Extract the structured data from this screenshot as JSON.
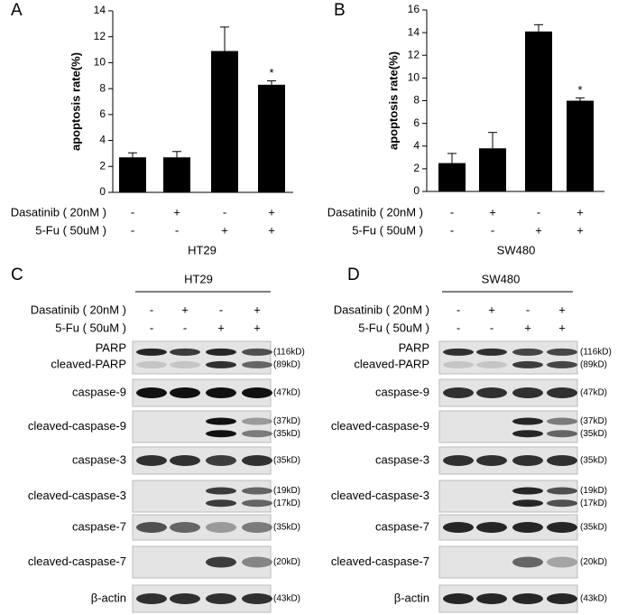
{
  "chart_data": [
    {
      "type": "bar",
      "panel": "A",
      "ylabel": "apoptosis rate(%)",
      "group_label": "HT29",
      "categories": [
        null,
        null,
        null,
        null
      ],
      "values": [
        2.7,
        2.7,
        10.9,
        8.3
      ],
      "errors": [
        0.35,
        0.45,
        1.85,
        0.3
      ],
      "annotations": [
        null,
        null,
        null,
        "*"
      ],
      "color": "#000000",
      "ylim": [
        0,
        14
      ],
      "yticks": [
        0,
        2,
        4,
        6,
        8,
        10,
        12,
        14
      ],
      "treatments": [
        {
          "name": "Dasatinib ( 20nM )",
          "signs": [
            "-",
            "+",
            "-",
            "+"
          ]
        },
        {
          "name": "5-Fu ( 50uM )",
          "signs": [
            "-",
            "-",
            "+",
            "+"
          ]
        }
      ]
    },
    {
      "type": "bar",
      "panel": "B",
      "ylabel": "apoptosis rate(%)",
      "group_label": "SW480",
      "categories": [
        null,
        null,
        null,
        null
      ],
      "values": [
        2.5,
        3.8,
        14.1,
        8.0
      ],
      "errors": [
        0.85,
        1.4,
        0.6,
        0.25
      ],
      "annotations": [
        null,
        null,
        null,
        "*"
      ],
      "color": "#000000",
      "ylim": [
        0,
        16
      ],
      "yticks": [
        0,
        2,
        4,
        6,
        8,
        10,
        12,
        14,
        16
      ],
      "treatments": [
        {
          "name": "Dasatinib ( 20nM )",
          "signs": [
            "-",
            "+",
            "-",
            "+"
          ]
        },
        {
          "name": "5-Fu ( 50uM )",
          "signs": [
            "-",
            "-",
            "+",
            "+"
          ]
        }
      ]
    }
  ],
  "blots": [
    {
      "panel": "C",
      "cell_line": "HT29",
      "treatments": [
        {
          "name": "Dasatinib ( 20nM )",
          "signs": [
            "-",
            "+",
            "-",
            "+"
          ]
        },
        {
          "name": "5-Fu ( 50uM )",
          "signs": [
            "-",
            "-",
            "+",
            "+"
          ]
        }
      ],
      "rows": [
        {
          "labels": [
            "PARP",
            "cleaved-PARP"
          ],
          "sizes": [
            "(116kD)",
            "(89kD)"
          ]
        },
        {
          "labels": [
            "caspase-9"
          ],
          "sizes": [
            "(47kD)"
          ]
        },
        {
          "labels": [
            "cleaved-caspase-9"
          ],
          "sizes": [
            "(37kD)",
            "(35kD)"
          ]
        },
        {
          "labels": [
            "caspase-3"
          ],
          "sizes": [
            "(35kD)"
          ]
        },
        {
          "labels": [
            "cleaved-caspase-3"
          ],
          "sizes": [
            "(19kD)",
            "(17kD)"
          ]
        },
        {
          "labels": [
            "caspase-7"
          ],
          "sizes": [
            "(35kD)"
          ]
        },
        {
          "labels": [
            "cleaved-caspase-7"
          ],
          "sizes": [
            "(20kD)"
          ]
        },
        {
          "labels": [
            "β-actin"
          ],
          "sizes": [
            "(43kD)"
          ]
        }
      ]
    },
    {
      "panel": "D",
      "cell_line": "SW480",
      "treatments": [
        {
          "name": "Dasatinib ( 20nM )",
          "signs": [
            "-",
            "+",
            "-",
            "+"
          ]
        },
        {
          "name": "5-Fu ( 50uM )",
          "signs": [
            "-",
            "-",
            "+",
            "+"
          ]
        }
      ],
      "rows": [
        {
          "labels": [
            "PARP",
            "cleaved-PARP"
          ],
          "sizes": [
            "(116kD)",
            "(89kD)"
          ]
        },
        {
          "labels": [
            "caspase-9"
          ],
          "sizes": [
            "(47kD)"
          ]
        },
        {
          "labels": [
            "cleaved-caspase-9"
          ],
          "sizes": [
            "(37kD)",
            "(35kD)"
          ]
        },
        {
          "labels": [
            "caspase-3"
          ],
          "sizes": [
            "(35kD)"
          ]
        },
        {
          "labels": [
            "cleaved-caspase-3"
          ],
          "sizes": [
            "(19kD)",
            "(17kD)"
          ]
        },
        {
          "labels": [
            "caspase-7"
          ],
          "sizes": [
            "(35kD)"
          ]
        },
        {
          "labels": [
            "cleaved-caspase-7"
          ],
          "sizes": [
            "(20kD)"
          ]
        },
        {
          "labels": [
            "β-actin"
          ],
          "sizes": [
            "(43kD)"
          ]
        }
      ]
    }
  ]
}
